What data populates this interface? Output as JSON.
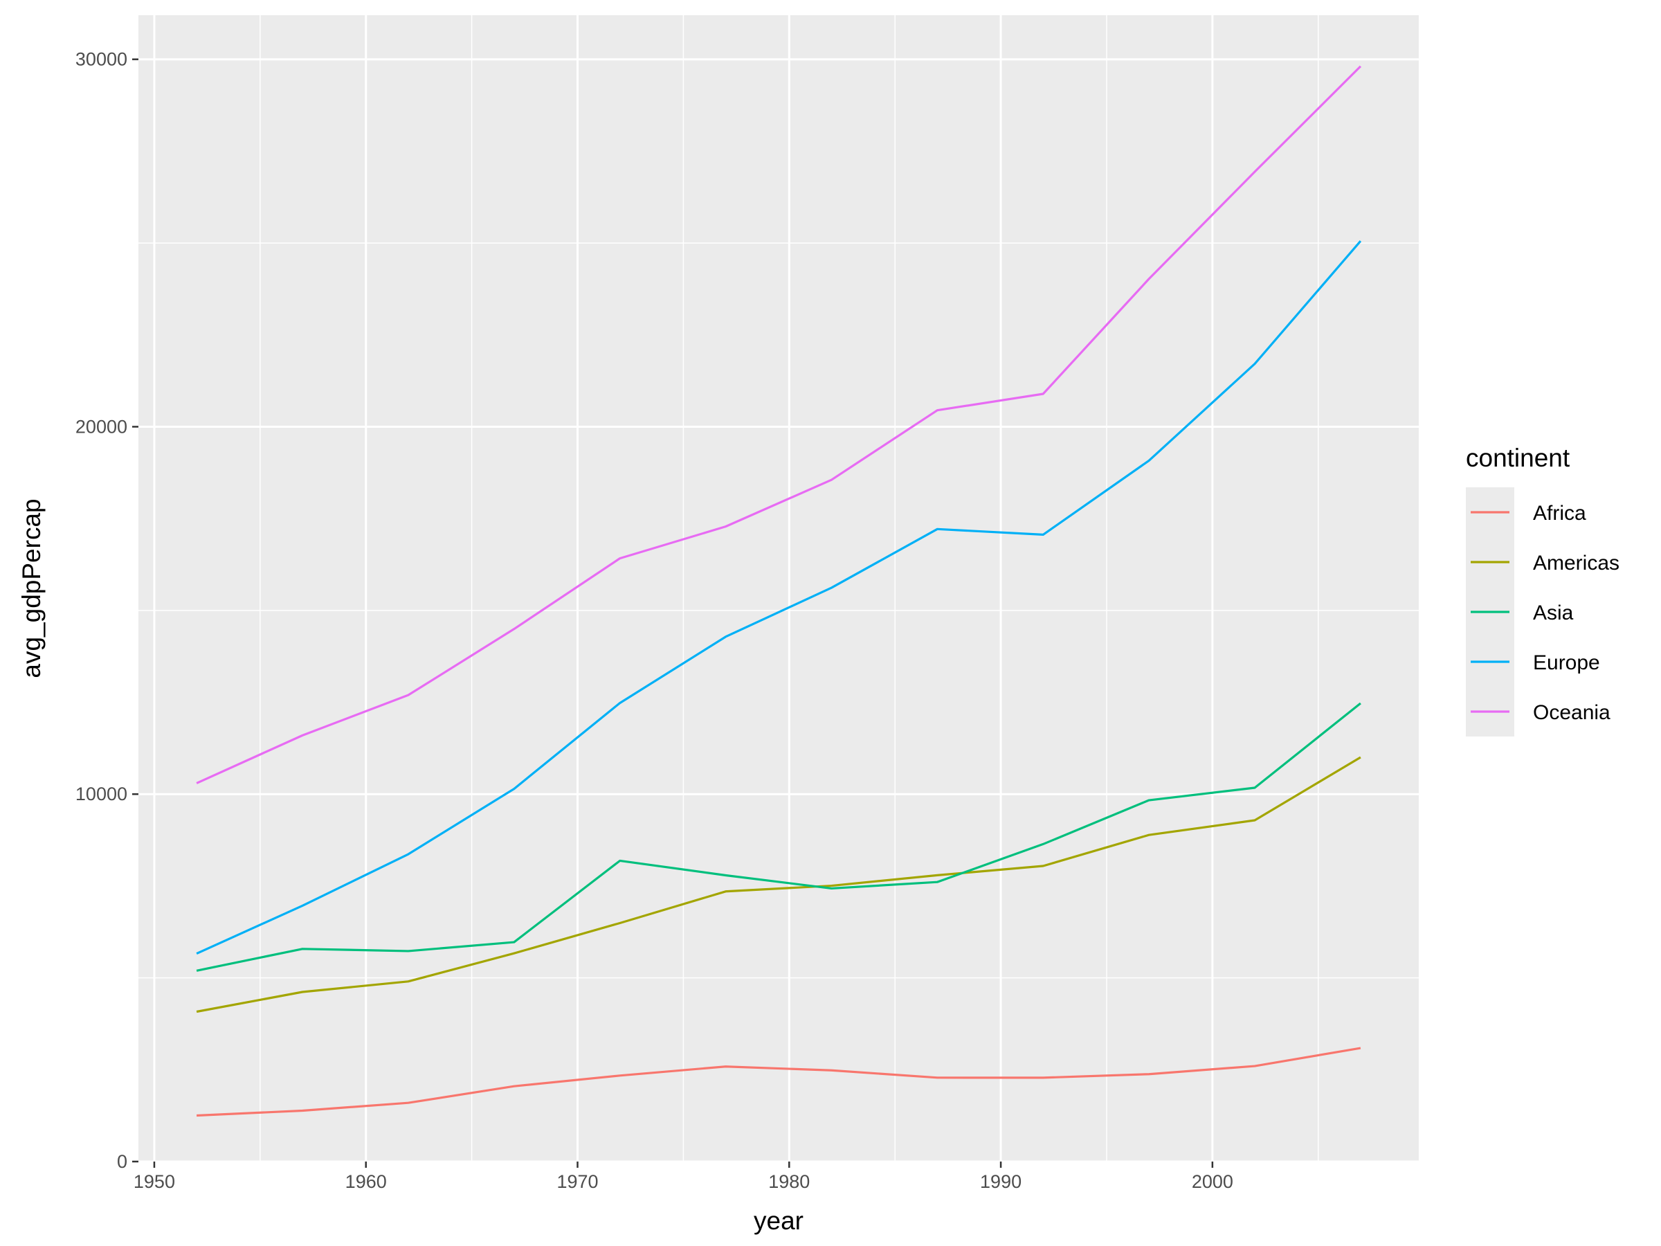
{
  "chart_data": {
    "type": "line",
    "xlabel": "year",
    "ylabel": "avg_gdpPercap",
    "xlim": [
      1949.25,
      2009.75
    ],
    "ylim": [
      0,
      31200
    ],
    "x_ticks": [
      1950,
      1960,
      1970,
      1980,
      1990,
      2000
    ],
    "x_minor_ticks": [
      1955,
      1965,
      1975,
      1985,
      1995,
      2005
    ],
    "y_ticks": [
      0,
      10000,
      20000,
      30000
    ],
    "y_minor_ticks": [
      5000,
      15000,
      25000
    ],
    "x_tick_labels": [
      "1950",
      "1960",
      "1970",
      "1980",
      "1990",
      "2000"
    ],
    "y_tick_labels": [
      "0",
      "10000",
      "20000",
      "30000"
    ],
    "grid": true,
    "legend": {
      "title": "continent",
      "position": "right"
    },
    "x": [
      1952,
      1957,
      1962,
      1967,
      1972,
      1977,
      1982,
      1987,
      1992,
      1997,
      2002,
      2007
    ],
    "series": [
      {
        "name": "Africa",
        "color": "#F8766D",
        "values": [
          1253,
          1385,
          1598,
          2050,
          2340,
          2586,
          2482,
          2283,
          2282,
          2379,
          2599,
          3089
        ]
      },
      {
        "name": "Americas",
        "color": "#A3A500",
        "values": [
          4079,
          4616,
          4902,
          5668,
          6491,
          7352,
          7507,
          7793,
          8045,
          8889,
          9288,
          11003
        ]
      },
      {
        "name": "Asia",
        "color": "#00BF7D",
        "values": [
          5195,
          5788,
          5729,
          5971,
          8187,
          7791,
          7434,
          7608,
          8640,
          9834,
          10174,
          12473
        ]
      },
      {
        "name": "Europe",
        "color": "#00B0F6",
        "values": [
          5661,
          6963,
          8365,
          10144,
          12480,
          14284,
          15618,
          17214,
          17062,
          19077,
          21712,
          25054
        ]
      },
      {
        "name": "Oceania",
        "color": "#E76BF3",
        "values": [
          10298,
          11599,
          12696,
          14495,
          16417,
          17284,
          18555,
          20448,
          20894,
          24024,
          26939,
          29810
        ]
      }
    ]
  }
}
